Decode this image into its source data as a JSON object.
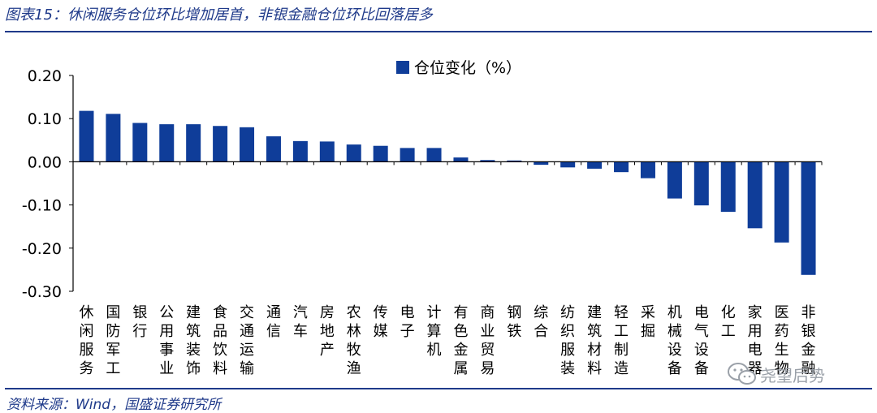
{
  "figure": {
    "title": "图表15：休闲服务仓位环比增加居首，非银金融仓位环比回落居多",
    "source": "资料来源：Wind，国盛证券研究所"
  },
  "watermark": {
    "text": "尧望后势",
    "icon": "wechat-icon"
  },
  "colors": {
    "bar": "#0f3d99",
    "axis": "#000000",
    "accent": "#1f3a8a"
  },
  "chart_data": {
    "type": "bar",
    "legend": "仓位变化（%）",
    "legend_position": "top-center",
    "grid": false,
    "ylim": [
      -0.3,
      0.2
    ],
    "yticks": [
      "0.20",
      "0.10",
      "0.00",
      "-0.10",
      "-0.20",
      "-0.30"
    ],
    "categories": [
      "休闲服务",
      "国防军工",
      "银行",
      "公用事业",
      "建筑装饰",
      "食品饮料",
      "交通运输",
      "通信",
      "汽车",
      "房地产",
      "农林牧渔",
      "传媒",
      "电子",
      "计算机",
      "有色金属",
      "商业贸易",
      "钢铁",
      "综合",
      "纺织服装",
      "建筑材料",
      "轻工制造",
      "采掘",
      "机械设备",
      "电气设备",
      "化工",
      "家用电器",
      "医药生物",
      "非银金融"
    ],
    "values": [
      0.118,
      0.111,
      0.09,
      0.087,
      0.087,
      0.083,
      0.08,
      0.059,
      0.048,
      0.047,
      0.04,
      0.037,
      0.032,
      0.032,
      0.01,
      0.004,
      0.003,
      -0.007,
      -0.013,
      -0.016,
      -0.024,
      -0.038,
      -0.085,
      -0.101,
      -0.116,
      -0.154,
      -0.187,
      -0.262
    ]
  }
}
